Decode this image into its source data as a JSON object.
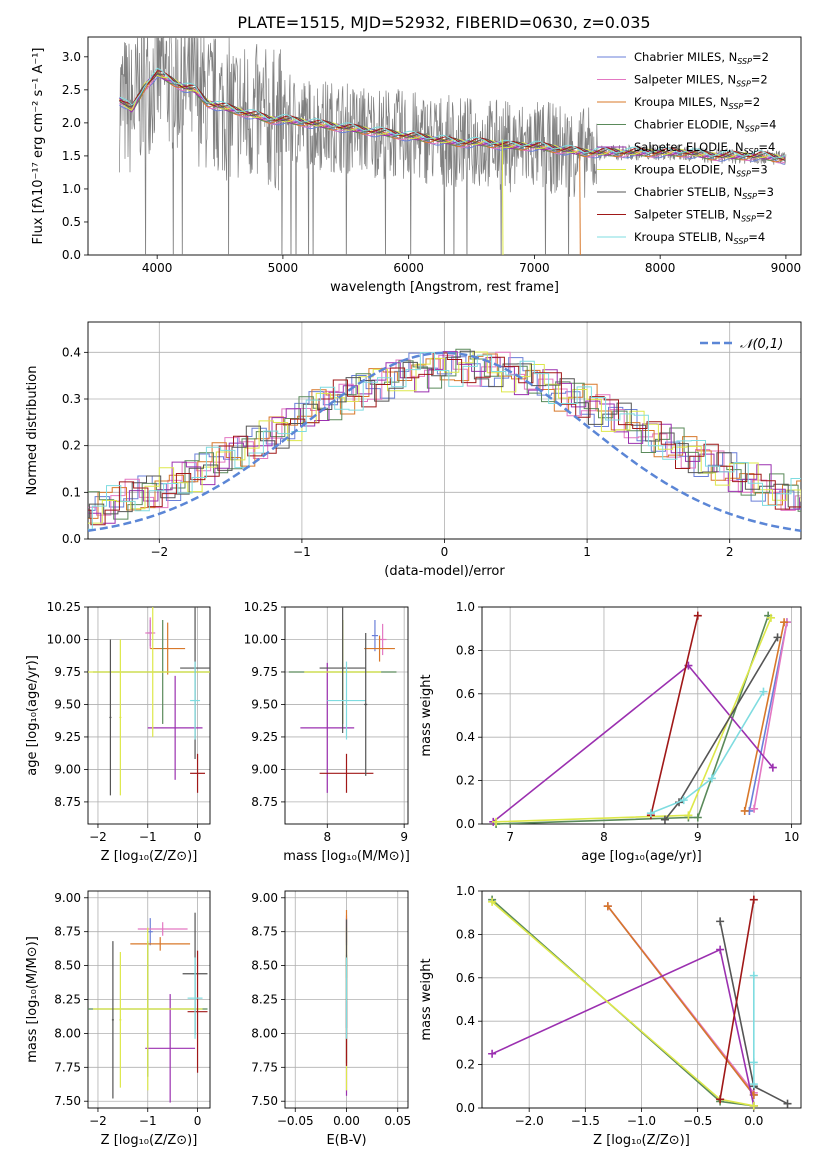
{
  "figure": {
    "title": "PLATE=1515, MJD=52932, FIBERID=0630, z=0.035"
  },
  "chart_data": [
    {
      "id": "spectrum",
      "type": "line",
      "xlabel": "wavelength [Angstrom, rest frame]",
      "ylabel": "Flux [fλ10⁻¹⁷ erg cm⁻² s⁻¹ A⁻¹]",
      "xlim": [
        3450,
        9120
      ],
      "ylim": [
        0,
        3.3
      ],
      "xticks": [
        4000,
        5000,
        6000,
        7000,
        8000,
        9000
      ],
      "yticks": [
        0.0,
        0.5,
        1.0,
        1.5,
        2.0,
        2.5,
        3.0
      ],
      "tick_labels_x": [
        "4000",
        "5000",
        "6000",
        "7000",
        "8000",
        "9000"
      ],
      "tick_labels_y": [
        "0.0",
        "0.5",
        "1.0",
        "1.5",
        "2.0",
        "2.5",
        "3.0"
      ],
      "grid": false,
      "legend": "top-right",
      "data_series": {
        "name": "",
        "color": "#7f7f7f",
        "x_range": [
          3700,
          9000
        ],
        "note_values": "noisy observed spectrum"
      },
      "model_continuum": {
        "x": [
          3700,
          3800,
          3900,
          4000,
          4100,
          4200,
          4300,
          4400,
          4500,
          4600,
          4700,
          4800,
          4900,
          5000,
          5200,
          5400,
          5600,
          5800,
          6000,
          6200,
          6400,
          6600,
          6800,
          7000,
          7200,
          7400,
          7600,
          7800,
          8000,
          8200,
          8400,
          8600,
          8800,
          9000
        ],
        "y": [
          2.35,
          2.2,
          2.55,
          2.75,
          2.65,
          2.55,
          2.5,
          2.3,
          2.25,
          2.2,
          2.15,
          2.1,
          2.05,
          2.05,
          2.0,
          1.95,
          1.9,
          1.85,
          1.8,
          1.75,
          1.7,
          1.7,
          1.65,
          1.65,
          1.6,
          1.55,
          1.55,
          1.55,
          1.55,
          1.55,
          1.5,
          1.5,
          1.5,
          1.45
        ]
      },
      "series": [
        {
          "name": "Chabrier MILES, N_SSP=2",
          "label_main": "Chabrier MILES, N",
          "label_sub": "SSP",
          "label_end": "=2",
          "color": "#6a7fd8"
        },
        {
          "name": "Salpeter MILES, N_SSP=2",
          "label_main": "Salpeter MILES, N",
          "label_sub": "SSP",
          "label_end": "=2",
          "color": "#e377c2"
        },
        {
          "name": "Kroupa MILES, N_SSP=2",
          "label_main": "Kroupa MILES, N",
          "label_sub": "SSP",
          "label_end": "=2",
          "color": "#d8782a"
        },
        {
          "name": "Chabrier ELODIE, N_SSP=4",
          "label_main": "Chabrier ELODIE, N",
          "label_sub": "SSP",
          "label_end": "=4",
          "color": "#5a8a5a"
        },
        {
          "name": "Salpeter ELODIE, N_SSP=4",
          "label_main": "Salpeter ELODIE, N",
          "label_sub": "SSP",
          "label_end": "=4",
          "color": "#9b30b0"
        },
        {
          "name": "Kroupa ELODIE, N_SSP=3",
          "label_main": "Kroupa ELODIE, N",
          "label_sub": "SSP",
          "label_end": "=3",
          "color": "#dde84a"
        },
        {
          "name": "Chabrier STELIB, N_SSP=3",
          "label_main": "Chabrier STELIB, N",
          "label_sub": "SSP",
          "label_end": "=3",
          "color": "#555555"
        },
        {
          "name": "Salpeter STELIB, N_SSP=2",
          "label_main": "Salpeter STELIB, N",
          "label_sub": "SSP",
          "label_end": "=2",
          "color": "#a01818"
        },
        {
          "name": "Kroupa STELIB, N_SSP=4",
          "label_main": "Kroupa STELIB, N",
          "label_sub": "SSP",
          "label_end": "=4",
          "color": "#7fdce0"
        }
      ]
    },
    {
      "id": "residuals",
      "type": "bar",
      "xlabel": "(data-model)/error",
      "ylabel": "Normed distribution",
      "xlim": [
        -2.5,
        2.5
      ],
      "ylim": [
        0,
        0.465
      ],
      "xticks": [
        -2,
        -1,
        0,
        1,
        2
      ],
      "tick_labels_x": [
        "−2",
        "−1",
        "0",
        "1",
        "2"
      ],
      "yticks": [
        0.0,
        0.1,
        0.2,
        0.3,
        0.4
      ],
      "tick_labels_y": [
        "0.0",
        "0.1",
        "0.2",
        "0.3",
        "0.4"
      ],
      "grid": true,
      "legend": "top-right",
      "gaussian": {
        "name": "𝒩(0,1)",
        "mean": 0,
        "sigma": 1,
        "color": "#5b86d6"
      },
      "bin_width": 0.1,
      "hist_base": [
        0.04,
        0.045,
        0.05,
        0.055,
        0.06,
        0.07,
        0.08,
        0.09,
        0.1,
        0.11,
        0.125,
        0.14,
        0.155,
        0.17,
        0.185,
        0.2,
        0.215,
        0.235,
        0.25,
        0.27,
        0.29,
        0.3,
        0.31,
        0.325,
        0.335,
        0.345,
        0.355,
        0.36,
        0.365,
        0.37,
        0.375,
        0.37,
        0.365,
        0.36,
        0.35,
        0.34,
        0.33,
        0.315,
        0.3,
        0.29,
        0.27,
        0.255,
        0.24,
        0.225,
        0.21,
        0.195,
        0.18,
        0.165,
        0.15,
        0.14,
        0.125,
        0.115,
        0.1,
        0.09,
        0.085,
        0.075,
        0.065,
        0.055,
        0.05,
        0.045
      ],
      "hist_x0": -2.95
    },
    {
      "id": "age_vs_Z",
      "type": "scatter",
      "xlabel": "Z [log₁₀(Z/Z⊙)]",
      "ylabel": "age  [log₁₀(age/yr)]",
      "xlim": [
        -2.2,
        0.25
      ],
      "ylim": [
        8.58,
        10.25
      ],
      "xticks": [
        -2,
        -1,
        0
      ],
      "tick_labels_x": [
        "−2",
        "−1",
        "0"
      ],
      "yticks": [
        8.75,
        9.0,
        9.25,
        9.5,
        9.75,
        10.0,
        10.25
      ],
      "tick_labels_y": [
        "8.75",
        "9.00",
        "9.25",
        "9.50",
        "9.75",
        "10.00",
        "10.25"
      ],
      "grid": true,
      "points": [
        {
          "color": "#6a7fd8",
          "x": -0.95,
          "y": 10.05,
          "xerr": 0.05,
          "yerr": 0.1
        },
        {
          "color": "#e377c2",
          "x": -0.95,
          "y": 10.05,
          "xerr": 0.1,
          "yerr": 0.12
        },
        {
          "color": "#d8782a",
          "x": -0.6,
          "y": 9.93,
          "xerr": 0.35,
          "yerr": 0.2
        },
        {
          "color": "#5a8a5a",
          "x": -0.7,
          "y": 9.75,
          "xerr": 1.4,
          "yerr": 0.4
        },
        {
          "color": "#9b30b0",
          "x": -0.45,
          "y": 9.32,
          "xerr": 0.55,
          "yerr": 0.4
        },
        {
          "color": "#dde84a",
          "x": -0.9,
          "y": 9.75,
          "xerr": 1.4,
          "yerr": 0.5
        },
        {
          "color": "#555555",
          "x": -0.05,
          "y": 9.78,
          "xerr": 0.3,
          "yerr": 0.7
        },
        {
          "color": "#a01818",
          "x": 0.0,
          "y": 8.97,
          "xerr": 0.15,
          "yerr": 0.15
        },
        {
          "color": "#7fdce0",
          "x": -0.05,
          "y": 9.53,
          "xerr": 0.1,
          "yerr": 0.3
        },
        {
          "color": "#555555",
          "x": -1.75,
          "y": 9.4,
          "xerr": 0.02,
          "yerr": 0.6
        },
        {
          "color": "#dde84a",
          "x": -1.55,
          "y": 9.4,
          "xerr": 0.02,
          "yerr": 0.6
        }
      ]
    },
    {
      "id": "age_vs_mass",
      "type": "scatter",
      "xlabel": "mass [log₁₀(M/M⊙)]",
      "ylabel": "",
      "xlim": [
        7.45,
        9.05
      ],
      "ylim": [
        8.58,
        10.25
      ],
      "xticks": [
        8,
        9
      ],
      "tick_labels_x": [
        "8",
        "9"
      ],
      "yticks": [
        8.75,
        9.0,
        9.25,
        9.5,
        9.75,
        10.0,
        10.25
      ],
      "tick_labels_y": [
        "8.75",
        "9.00",
        "9.25",
        "9.50",
        "9.75",
        "10.00",
        "10.25"
      ],
      "grid": true,
      "points": [
        {
          "color": "#6a7fd8",
          "x": 8.62,
          "y": 10.03,
          "xerr": 0.04,
          "yerr": 0.12
        },
        {
          "color": "#e377c2",
          "x": 8.72,
          "y": 10.0,
          "xerr": 0.05,
          "yerr": 0.12
        },
        {
          "color": "#d8782a",
          "x": 8.68,
          "y": 9.93,
          "xerr": 0.2,
          "yerr": 0.1
        },
        {
          "color": "#5a8a5a",
          "x": 8.2,
          "y": 9.75,
          "xerr": 0.7,
          "yerr": 0.4
        },
        {
          "color": "#9b30b0",
          "x": 8.0,
          "y": 9.32,
          "xerr": 0.35,
          "yerr": 0.5
        },
        {
          "color": "#dde84a",
          "x": 8.2,
          "y": 9.75,
          "xerr": 0.5,
          "yerr": 0.4
        },
        {
          "color": "#555555",
          "x": 8.2,
          "y": 9.78,
          "xerr": 0.3,
          "yerr": 0.5
        },
        {
          "color": "#a01818",
          "x": 8.25,
          "y": 8.97,
          "xerr": 0.35,
          "yerr": 0.15
        },
        {
          "color": "#7fdce0",
          "x": 8.25,
          "y": 9.53,
          "xerr": 0.25,
          "yerr": 0.3
        },
        {
          "color": "#555555",
          "x": 8.5,
          "y": 9.5,
          "xerr": 0.02,
          "yerr": 0.55
        }
      ]
    },
    {
      "id": "mass_weight_vs_age",
      "type": "line",
      "xlabel": "age  [log₁₀(age/yr)]",
      "ylabel": "mass weight",
      "xlim": [
        6.7,
        10.1
      ],
      "ylim": [
        0,
        1
      ],
      "xticks": [
        7,
        8,
        9,
        10
      ],
      "tick_labels_x": [
        "7",
        "8",
        "9",
        "10"
      ],
      "yticks": [
        0.0,
        0.2,
        0.4,
        0.6,
        0.8,
        1.0
      ],
      "tick_labels_y": [
        "0.0",
        "0.2",
        "0.4",
        "0.6",
        "0.8",
        "1.0"
      ],
      "grid": true,
      "series": [
        {
          "color": "#6a7fd8",
          "x": [
            9.55,
            9.95
          ],
          "y": [
            0.06,
            0.93
          ]
        },
        {
          "color": "#e377c2",
          "x": [
            9.6,
            9.95
          ],
          "y": [
            0.07,
            0.93
          ]
        },
        {
          "color": "#d8782a",
          "x": [
            9.5,
            9.92
          ],
          "y": [
            0.06,
            0.93
          ]
        },
        {
          "color": "#5a8a5a",
          "x": [
            6.85,
            8.9,
            9.0,
            9.75
          ],
          "y": [
            0.0,
            0.03,
            0.03,
            0.96
          ]
        },
        {
          "color": "#9b30b0",
          "x": [
            6.82,
            8.9,
            9.8
          ],
          "y": [
            0.01,
            0.73,
            0.26
          ]
        },
        {
          "color": "#dde84a",
          "x": [
            6.85,
            8.9,
            9.78
          ],
          "y": [
            0.01,
            0.04,
            0.95
          ]
        },
        {
          "color": "#555555",
          "x": [
            8.65,
            8.8,
            9.85
          ],
          "y": [
            0.02,
            0.1,
            0.86
          ]
        },
        {
          "color": "#a01818",
          "x": [
            8.5,
            9.0
          ],
          "y": [
            0.04,
            0.96
          ]
        },
        {
          "color": "#7fdce0",
          "x": [
            8.5,
            8.85,
            9.15,
            9.7
          ],
          "y": [
            0.05,
            0.11,
            0.21,
            0.61
          ]
        }
      ]
    },
    {
      "id": "mass_vs_Z",
      "type": "scatter",
      "xlabel": "Z [log₁₀(Z/Z⊙)]",
      "ylabel": "mass [log₁₀(M/M⊙)]",
      "xlim": [
        -2.2,
        0.25
      ],
      "ylim": [
        7.45,
        9.05
      ],
      "xticks": [
        -2,
        -1,
        0
      ],
      "tick_labels_x": [
        "−2",
        "−1",
        "0"
      ],
      "yticks": [
        7.5,
        7.75,
        8.0,
        8.25,
        8.5,
        8.75,
        9.0
      ],
      "tick_labels_y": [
        "7.50",
        "7.75",
        "8.00",
        "8.25",
        "8.50",
        "8.75",
        "9.00"
      ],
      "grid": true,
      "points": [
        {
          "color": "#6a7fd8",
          "x": -0.95,
          "y": 8.75,
          "xerr": 0.05,
          "yerr": 0.1
        },
        {
          "color": "#e377c2",
          "x": -0.7,
          "y": 8.77,
          "xerr": 0.5,
          "yerr": 0.05
        },
        {
          "color": "#d8782a",
          "x": -0.75,
          "y": 8.66,
          "xerr": 0.6,
          "yerr": 0.05
        },
        {
          "color": "#5a8a5a",
          "x": -1.0,
          "y": 8.18,
          "xerr": 1.2,
          "yerr": 0.5
        },
        {
          "color": "#9b30b0",
          "x": -0.55,
          "y": 7.89,
          "xerr": 0.5,
          "yerr": 0.4
        },
        {
          "color": "#dde84a",
          "x": -1.0,
          "y": 8.18,
          "xerr": 1.1,
          "yerr": 0.6
        },
        {
          "color": "#555555",
          "x": -0.05,
          "y": 8.44,
          "xerr": 0.25,
          "yerr": 0.45
        },
        {
          "color": "#a01818",
          "x": 0.0,
          "y": 8.16,
          "xerr": 0.2,
          "yerr": 0.45
        },
        {
          "color": "#7fdce0",
          "x": -0.05,
          "y": 8.26,
          "xerr": 0.15,
          "yerr": 0.3
        },
        {
          "color": "#555555",
          "x": -1.7,
          "y": 8.1,
          "xerr": 0.02,
          "yerr": 0.58
        },
        {
          "color": "#dde84a",
          "x": -1.55,
          "y": 8.1,
          "xerr": 0.02,
          "yerr": 0.5
        }
      ]
    },
    {
      "id": "mass_vs_EBV",
      "type": "scatter",
      "xlabel": "E(B-V)",
      "ylabel": "",
      "xlim": [
        -0.06,
        0.06
      ],
      "ylim": [
        7.45,
        9.05
      ],
      "xticks": [
        -0.05,
        0.0,
        0.05
      ],
      "tick_labels_x": [
        "−0.05",
        "0.00",
        "0.05"
      ],
      "yticks": [
        7.5,
        7.75,
        8.0,
        8.25,
        8.5,
        8.75,
        9.0
      ],
      "tick_labels_y": [
        "7.50",
        "7.75",
        "8.00",
        "8.25",
        "8.50",
        "8.75",
        "9.00"
      ],
      "grid": true,
      "points": [
        {
          "color": "#6a7fd8",
          "x": 0.0,
          "y": 8.75,
          "xerr": 0.0,
          "yerr": 0.1
        },
        {
          "color": "#e377c2",
          "x": 0.0,
          "y": 8.77,
          "xerr": 0.0,
          "yerr": 0.1
        },
        {
          "color": "#d8782a",
          "x": 0.0,
          "y": 8.66,
          "xerr": 0.0,
          "yerr": 0.25
        },
        {
          "color": "#5a8a5a",
          "x": 0.0,
          "y": 8.18,
          "xerr": 0.0,
          "yerr": 0.4
        },
        {
          "color": "#9b30b0",
          "x": 0.0,
          "y": 7.89,
          "xerr": 0.0,
          "yerr": 0.35
        },
        {
          "color": "#dde84a",
          "x": 0.0,
          "y": 8.18,
          "xerr": 0.0,
          "yerr": 0.6
        },
        {
          "color": "#555555",
          "x": 0.0,
          "y": 8.44,
          "xerr": 0.0,
          "yerr": 0.4
        },
        {
          "color": "#a01818",
          "x": 0.0,
          "y": 8.16,
          "xerr": 0.0,
          "yerr": 0.4
        },
        {
          "color": "#7fdce0",
          "x": 0.0,
          "y": 8.26,
          "xerr": 0.0,
          "yerr": 0.3
        }
      ]
    },
    {
      "id": "mass_weight_vs_Z",
      "type": "line",
      "xlabel": "Z [log₁₀(Z/Z⊙)]",
      "ylabel": "mass weight",
      "xlim": [
        -2.42,
        0.42
      ],
      "ylim": [
        0,
        1
      ],
      "xticks": [
        -2.0,
        -1.5,
        -1.0,
        -0.5,
        0.0
      ],
      "tick_labels_x": [
        "−2.0",
        "−1.5",
        "−1.0",
        "−0.5",
        "0.0"
      ],
      "yticks": [
        0.0,
        0.2,
        0.4,
        0.6,
        0.8,
        1.0
      ],
      "tick_labels_y": [
        "0.0",
        "0.2",
        "0.4",
        "0.6",
        "0.8",
        "1.0"
      ],
      "grid": true,
      "series": [
        {
          "color": "#6a7fd8",
          "x": [
            -1.3,
            0.0
          ],
          "y": [
            0.93,
            0.06
          ]
        },
        {
          "color": "#e377c2",
          "x": [
            -1.3,
            0.0
          ],
          "y": [
            0.93,
            0.07
          ]
        },
        {
          "color": "#d8782a",
          "x": [
            -1.3,
            0.0
          ],
          "y": [
            0.93,
            0.06
          ]
        },
        {
          "color": "#5a8a5a",
          "x": [
            -2.33,
            -0.3,
            0.0
          ],
          "y": [
            0.96,
            0.03,
            0.01
          ]
        },
        {
          "color": "#9b30b0",
          "x": [
            -2.33,
            -0.3,
            0.0
          ],
          "y": [
            0.25,
            0.73,
            0.01
          ]
        },
        {
          "color": "#dde84a",
          "x": [
            -2.33,
            -0.3,
            0.0
          ],
          "y": [
            0.95,
            0.04,
            0.01
          ]
        },
        {
          "color": "#555555",
          "x": [
            -0.3,
            0.0,
            0.3
          ],
          "y": [
            0.86,
            0.1,
            0.02
          ]
        },
        {
          "color": "#a01818",
          "x": [
            -0.3,
            0.0
          ],
          "y": [
            0.04,
            0.96
          ]
        },
        {
          "color": "#7fdce0",
          "x": [
            0.0,
            0.0,
            0.0
          ],
          "y": [
            0.61,
            0.21,
            0.11
          ]
        }
      ]
    }
  ]
}
